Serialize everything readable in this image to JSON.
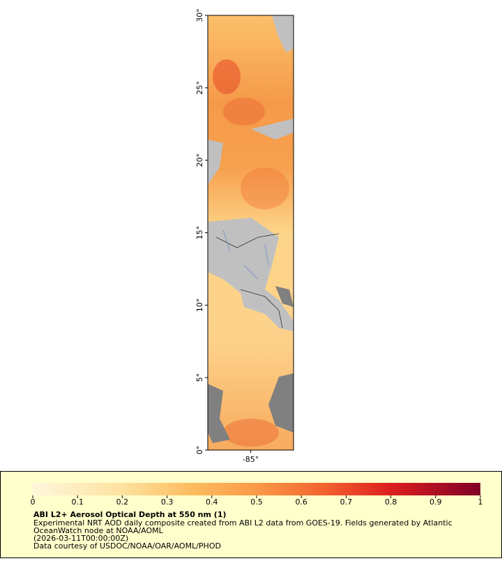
{
  "chart_data": {
    "type": "map",
    "ylim": [
      0,
      30
    ],
    "yticks": [
      {
        "value": 0,
        "label": "0°"
      },
      {
        "value": 5,
        "label": "5°"
      },
      {
        "value": 10,
        "label": "10°"
      },
      {
        "value": 15,
        "label": "15°"
      },
      {
        "value": 20,
        "label": "20°"
      },
      {
        "value": 25,
        "label": "25°"
      },
      {
        "value": 30,
        "label": "30°"
      }
    ],
    "xlim": [
      -88,
      -82
    ],
    "xticks": [
      {
        "value": -85,
        "label": "-85°"
      }
    ],
    "colorbar": {
      "lim": [
        0,
        1
      ],
      "ticks": [
        0,
        0.1,
        0.2,
        0.3,
        0.4,
        0.5,
        0.6,
        0.7,
        0.8,
        0.9,
        1
      ]
    },
    "title": "ABI L2+ Aerosol Optical Depth at 550 nm (1)",
    "caption": [
      "Experimental NRT AOD daily composite created from ABI L2 data from GOES-19. Fields generated by Atlantic",
      "OceanWatch node at NOAA/AOML",
      "(2026-03-11T00:00:00Z)",
      "Data courtesy of USDOC/NOAA/OAR/AOML/PHOD"
    ]
  }
}
